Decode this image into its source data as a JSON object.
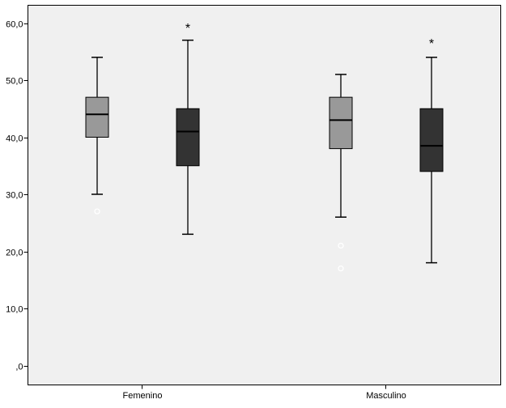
{
  "chart_data": {
    "type": "boxplot",
    "title": "",
    "xlabel": "",
    "ylabel": "",
    "ylim": [
      0,
      64
    ],
    "yticks": [
      0,
      10,
      20,
      30,
      40,
      50,
      60
    ],
    "ytick_labels": [
      ",0",
      "10,0",
      "20,0",
      "30,0",
      "40,0",
      "50,0",
      "60,0"
    ],
    "categories": [
      "Femenino",
      "Masculino"
    ],
    "grid": false,
    "background": "#f0f0f0",
    "series_colors": [
      "#999999",
      "#333333"
    ],
    "outlier_color": "#ffffff",
    "extreme_symbol": "*",
    "groups": [
      {
        "category": "Femenino",
        "boxes": [
          {
            "series_index": 0,
            "min": 30,
            "q1": 40,
            "median": 44,
            "q3": 47,
            "max": 54,
            "outliers": [
              27
            ],
            "extremes": []
          },
          {
            "series_index": 1,
            "min": 23,
            "q1": 35,
            "median": 41,
            "q3": 45,
            "max": 57,
            "outliers": [],
            "extremes": [
              59.5
            ]
          }
        ]
      },
      {
        "category": "Masculino",
        "boxes": [
          {
            "series_index": 0,
            "min": 26,
            "q1": 38,
            "median": 43,
            "q3": 47,
            "max": 51,
            "outliers": [
              21,
              17
            ],
            "extremes": []
          },
          {
            "series_index": 1,
            "min": 18,
            "q1": 34,
            "median": 38.5,
            "q3": 45,
            "max": 54,
            "outliers": [],
            "extremes": [
              56.8
            ]
          }
        ]
      }
    ]
  }
}
